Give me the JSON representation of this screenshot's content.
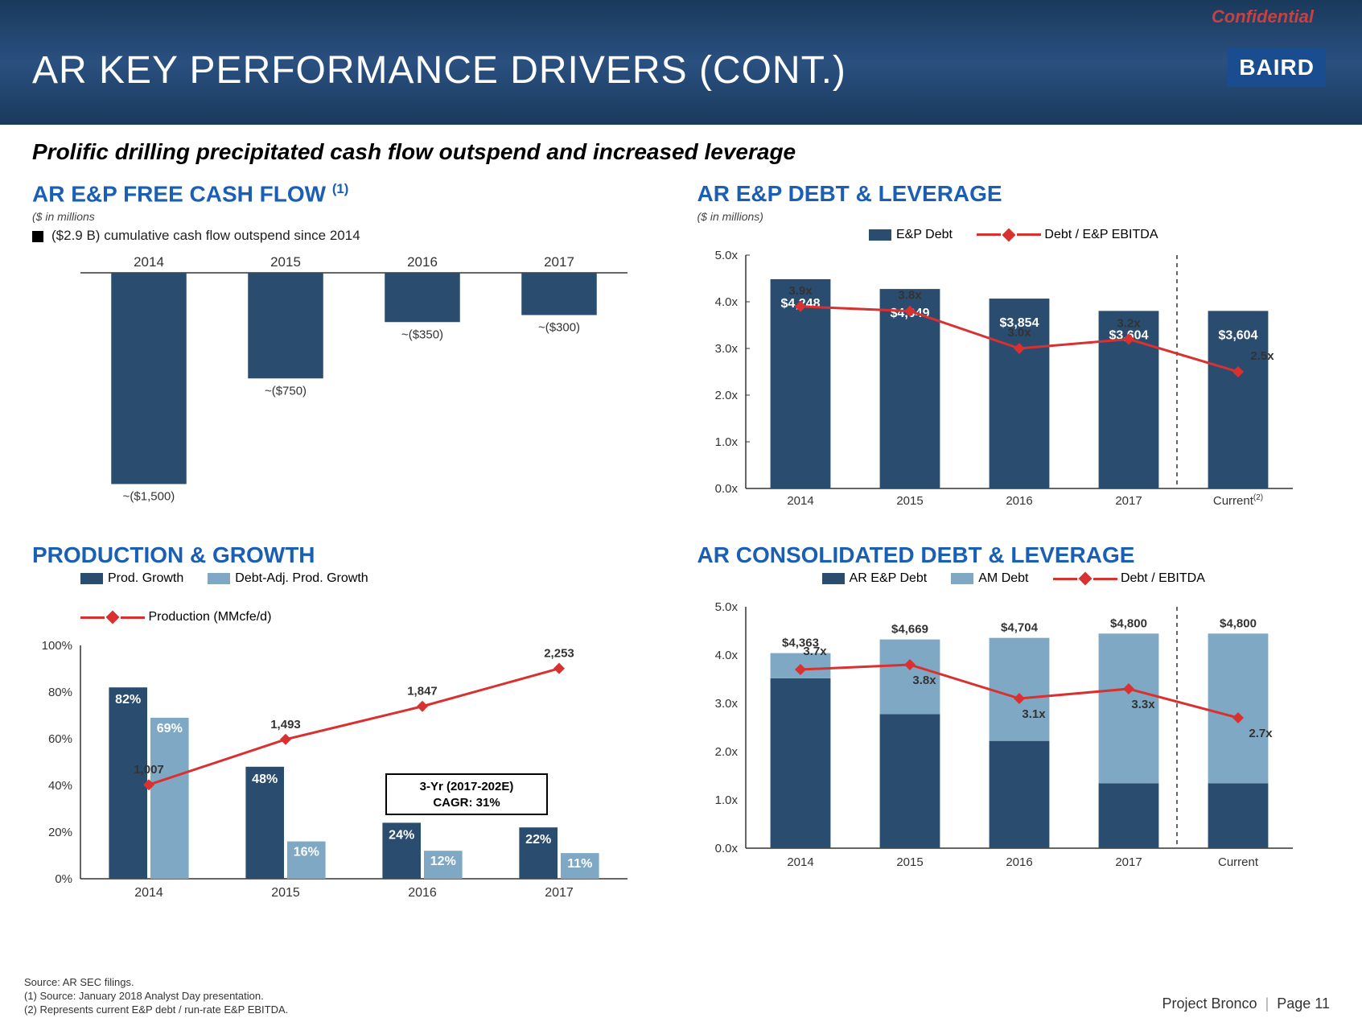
{
  "confidential": "Confidential",
  "slide_title": "AR KEY PERFORMANCE DRIVERS (CONT.)",
  "logo_text": "BAIRD",
  "subtitle": "Prolific drilling precipitated cash flow outspend and increased leverage",
  "colors": {
    "header_bg": "#1a3a5c",
    "title_blue": "#1a5fb4",
    "bar_dark": "#2a4d6f",
    "bar_light": "#7fa8c4",
    "line_red": "#d93030",
    "confidential_red": "#c84040"
  },
  "fcf": {
    "title": "AR E&P FREE CASH FLOW ",
    "title_sup": "(1)",
    "units": "($ in millions",
    "note": "($2.9 B) cumulative cash flow outspend since 2014",
    "years": [
      "2014",
      "2015",
      "2016",
      "2017"
    ],
    "values": [
      -1500,
      -750,
      -350,
      -300
    ],
    "labels": [
      "~($1,500)",
      "~($750)",
      "~($350)",
      "~($300)"
    ],
    "ylim": [
      -1600,
      0
    ],
    "bar_color": "#2a4d6f"
  },
  "debt_lev": {
    "title": "AR E&P DEBT & LEVERAGE",
    "units": "($ in millions)",
    "legend": {
      "bars": "E&P Debt",
      "line": "Debt / E&P EBITDA"
    },
    "categories": [
      "2014",
      "2015",
      "2016",
      "2017",
      "Current"
    ],
    "current_sup": "(2)",
    "debt_values": [
      4248,
      4049,
      3854,
      3604,
      3604
    ],
    "debt_labels": [
      "$4,248",
      "$4,049",
      "$3,854",
      "$3,604",
      "$3,604"
    ],
    "ratio_values": [
      3.9,
      3.8,
      3.0,
      3.2,
      2.5
    ],
    "ratio_labels": [
      "3.9x",
      "3.8x",
      "3.0x",
      "3.2x",
      "2.5x"
    ],
    "y_ticks": [
      "0.0x",
      "1.0x",
      "2.0x",
      "3.0x",
      "4.0x",
      "5.0x"
    ],
    "ylim": [
      0,
      5
    ],
    "bar_color": "#2a4d6f",
    "line_color": "#d93030",
    "has_separator": true
  },
  "prod": {
    "title": "PRODUCTION & GROWTH",
    "legend": {
      "bars1": "Prod. Growth",
      "bars2": "Debt-Adj. Prod. Growth",
      "line": "Production (MMcfe/d)"
    },
    "years": [
      "2014",
      "2015",
      "2016",
      "2017"
    ],
    "growth": [
      82,
      48,
      24,
      22
    ],
    "debt_adj_growth": [
      69,
      16,
      12,
      11
    ],
    "production": [
      1007,
      1493,
      1847,
      2253
    ],
    "prod_labels": [
      "1,007",
      "1,493",
      "1,847",
      "2,253"
    ],
    "y_ticks": [
      "0%",
      "20%",
      "40%",
      "60%",
      "80%",
      "100%"
    ],
    "ylim": [
      0,
      100
    ],
    "cagr_box": "3-Yr (2017-202E)\nCAGR: 31%",
    "cagr_line1": "3-Yr (2017-202E)",
    "cagr_line2": "CAGR: 31%",
    "bar1_color": "#2a4d6f",
    "bar2_color": "#7fa8c4",
    "line_color": "#d93030"
  },
  "cons": {
    "title": "AR CONSOLIDATED DEBT & LEVERAGE",
    "legend": {
      "bars1": "AR E&P Debt",
      "bars2": "AM Debt",
      "line": "Debt / EBITDA"
    },
    "categories": [
      "2014",
      "2015",
      "2016",
      "2017",
      "Current"
    ],
    "ep_debt": [
      3800,
      3000,
      2400,
      1450,
      1450
    ],
    "am_debt": [
      563,
      1669,
      2304,
      3350,
      3350
    ],
    "total_labels": [
      "$4,363",
      "$4,669",
      "$4,704",
      "$4,800",
      "$4,800"
    ],
    "total_values": [
      4363,
      4669,
      4704,
      4800,
      4800
    ],
    "ratio_values": [
      3.7,
      3.8,
      3.1,
      3.3,
      2.7
    ],
    "ratio_labels": [
      "3.7x",
      "3.8x",
      "3.1x",
      "3.3x",
      "2.7x"
    ],
    "y_ticks": [
      "0.0x",
      "1.0x",
      "2.0x",
      "3.0x",
      "4.0x",
      "5.0x"
    ],
    "ylim": [
      0,
      5
    ],
    "bar1_color": "#2a4d6f",
    "bar2_color": "#7fa8c4",
    "line_color": "#d93030",
    "has_separator": true
  },
  "footer": {
    "source_line": "Source: AR SEC filings.",
    "note1": "(1)    Source: January 2018 Analyst Day presentation.",
    "note2": "(2)    Represents current E&P debt / run-rate E&P EBITDA.",
    "project": "Project Bronco",
    "page": "Page 11"
  }
}
